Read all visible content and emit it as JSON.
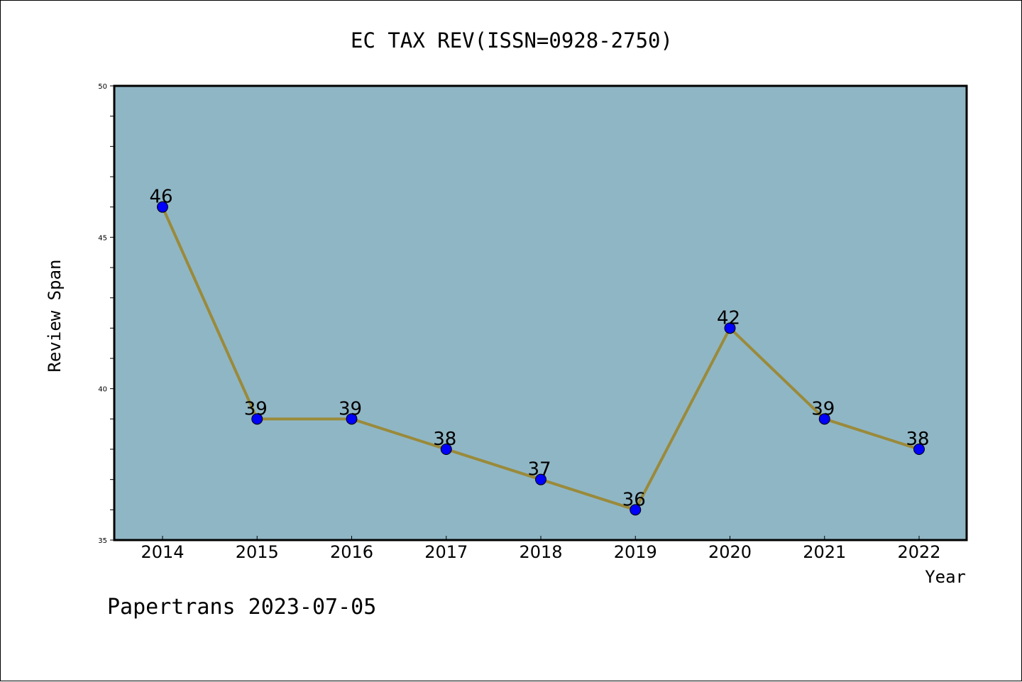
{
  "chart_data": {
    "type": "line",
    "title": "EC TAX REV(ISSN=0928-2750)",
    "xlabel": "Year",
    "ylabel": "Review Span",
    "categories": [
      "2014",
      "2015",
      "2016",
      "2017",
      "2018",
      "2019",
      "2020",
      "2021",
      "2022"
    ],
    "series": [
      {
        "values": [
          46,
          39,
          39,
          38,
          37,
          36,
          42,
          39,
          38
        ]
      }
    ],
    "ylim": [
      35,
      50
    ],
    "yticks": [
      35,
      40,
      45,
      50
    ],
    "data_labels": true,
    "grid": false,
    "colors": {
      "plot_background": "#8fb6c5",
      "line": "#9a8a3a",
      "marker": "#0000ff"
    }
  },
  "footer": {
    "text": "Papertrans 2023-07-05"
  }
}
